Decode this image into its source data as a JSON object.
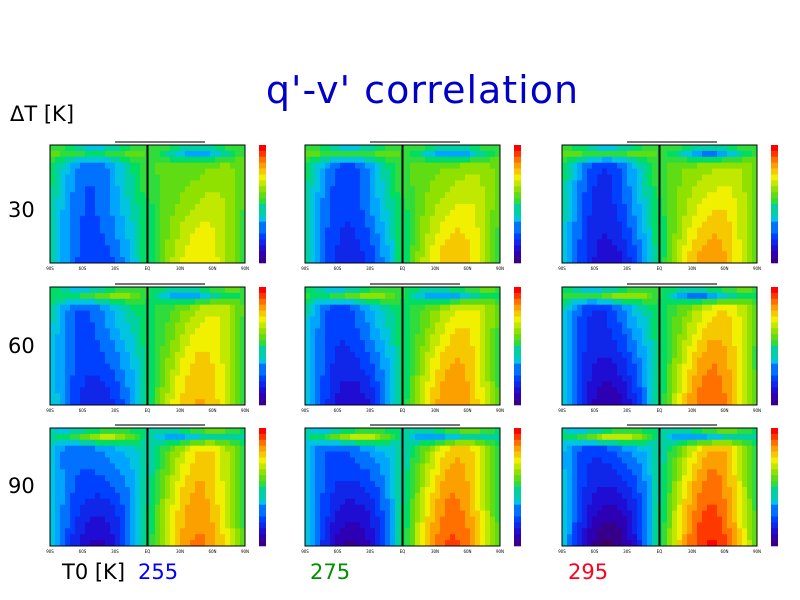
{
  "title": "q'-v' correlation",
  "row_axis_label": "ΔT [K]",
  "col_axis_label": "T0 [K]",
  "rows": [
    "30",
    "60",
    "90"
  ],
  "cols": [
    {
      "label": "255",
      "color": "#0000ff"
    },
    {
      "label": "275",
      "color": "#009000"
    },
    {
      "label": "295",
      "color": "#ff0020"
    }
  ],
  "chart_data": {
    "type": "heatmap",
    "title": "q'-v' correlation",
    "layout": "3x3 grid of latitude-sigma contour plots",
    "row_variable": "ΔT [K]",
    "row_values": [
      30,
      60,
      90
    ],
    "col_variable": "T0 [K]",
    "col_values": [
      255,
      275,
      295
    ],
    "colorbar_range": [
      -1.0,
      1.0
    ],
    "sign_pattern": "negative (blue) in southern hemisphere interior, positive (yellow) in northern hemisphere interior, reversed near top"
  }
}
